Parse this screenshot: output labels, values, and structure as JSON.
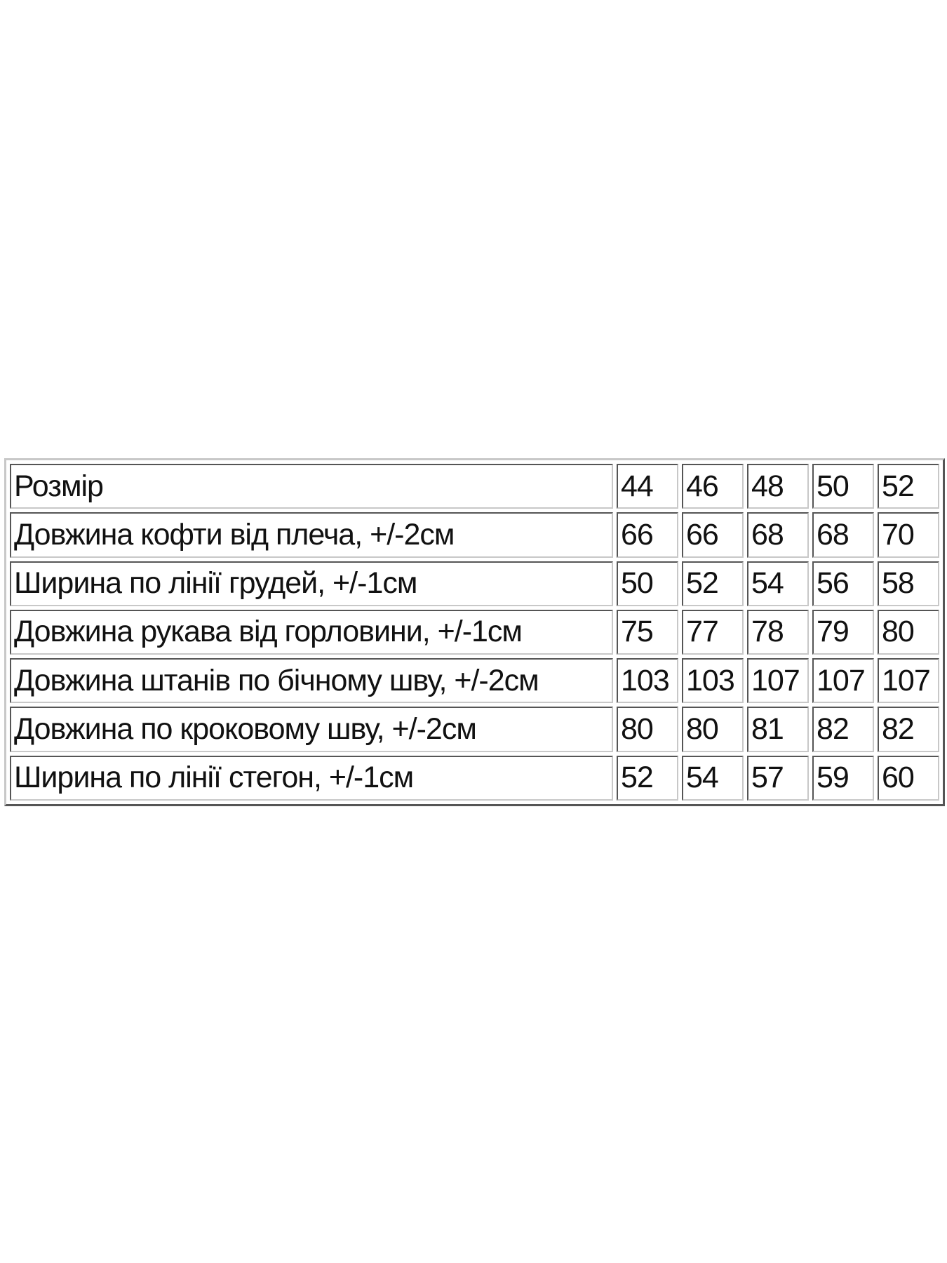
{
  "table": {
    "header": {
      "label": "Розмір",
      "sizes": [
        "44",
        "46",
        "48",
        "50",
        "52"
      ]
    },
    "rows": [
      {
        "label": "Довжина кофти від плеча, +/-2см",
        "values": [
          "66",
          "66",
          "68",
          "68",
          "70"
        ]
      },
      {
        "label": "Ширина по лінії грудей, +/-1см",
        "values": [
          "50",
          "52",
          "54",
          "56",
          "58"
        ]
      },
      {
        "label": "Довжина рукава від горловини, +/-1см",
        "values": [
          "75",
          "77",
          "78",
          "79",
          "80"
        ]
      },
      {
        "label": "Довжина штанів по бічному шву, +/-2см",
        "values": [
          "103",
          "103",
          "107",
          "107",
          "107"
        ]
      },
      {
        "label": "Довжина по кроковому шву, +/-2см",
        "values": [
          "80",
          "80",
          "81",
          "82",
          "82"
        ]
      },
      {
        "label": "Ширина по лінії стегон, +/-1см",
        "values": [
          "52",
          "54",
          "57",
          "59",
          "60"
        ]
      }
    ]
  }
}
